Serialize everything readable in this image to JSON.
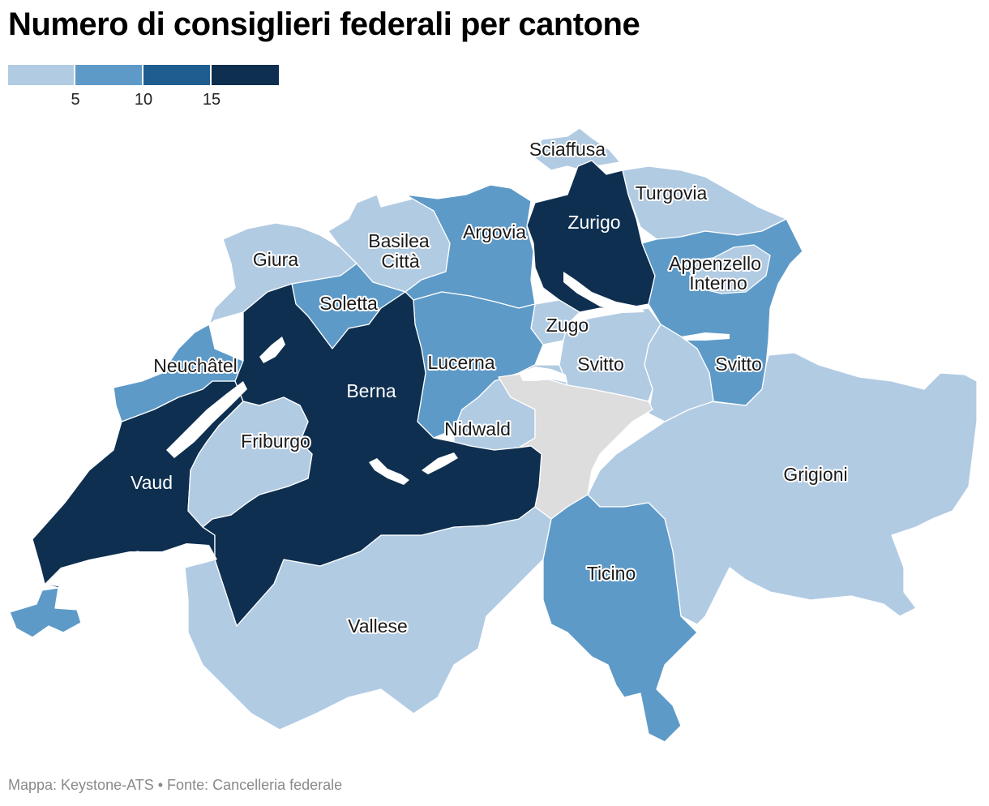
{
  "title": "Numero di consiglieri federali per cantone",
  "legend": {
    "colors": [
      "#b1cbe3",
      "#5d9ac8",
      "#1f5d91",
      "#0e2f50"
    ],
    "ticks": [
      "5",
      "10",
      "15"
    ]
  },
  "no_data_color": "#dddddd",
  "map": {
    "labels": {
      "sciaffusa": "Sciaffusa",
      "turgovia": "Turgovia",
      "zurigo": "Zurigo",
      "argovia": "Argovia",
      "basilea_line1": "Basilea",
      "basilea_line2": "Città",
      "giura": "Giura",
      "appenzello_line1": "Appenzello",
      "appenzello_line2": "Interno",
      "soletta": "Soletta",
      "zugo": "Zugo",
      "neuchatel": "Neuchâtel",
      "lucerna": "Lucerna",
      "svitto": "Svitto",
      "svitto_east": "Svitto",
      "berna": "Berna",
      "nidwald": "Nidwald",
      "friburgo": "Friburgo",
      "vaud": "Vaud",
      "grigioni": "Grigioni",
      "ticino": "Ticino",
      "vallese": "Vallese"
    }
  },
  "footer": "Mappa: Keystone-ATS • Fonte: Cancelleria federale"
}
